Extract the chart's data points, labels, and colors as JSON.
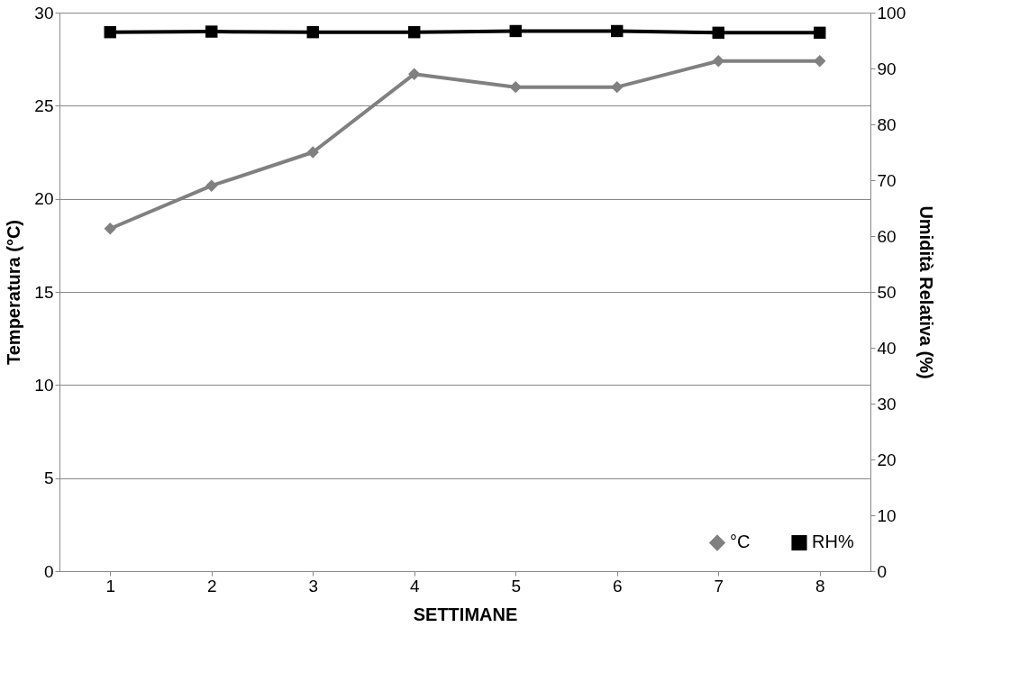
{
  "chart_data": {
    "type": "line",
    "xlabel": "SETTIMANE",
    "ylabel": "Temperatura (°C)",
    "y2label": "Umidità Relativa (%)",
    "categories": [
      "1",
      "2",
      "3",
      "4",
      "5",
      "6",
      "7",
      "8"
    ],
    "series": [
      {
        "name": "°C",
        "color": "#808080",
        "marker": "diamond",
        "values": [
          18.4,
          20.7,
          22.5,
          26.7,
          26.0,
          26.0,
          27.4,
          27.4
        ]
      },
      {
        "name": "RH%",
        "color": "#000000",
        "marker": "square",
        "axis": "y2",
        "values": [
          96.5,
          96.6,
          96.5,
          96.5,
          96.7,
          96.7,
          96.4,
          96.4
        ]
      }
    ],
    "ylim": [
      0,
      30
    ],
    "yticks": [
      0,
      5,
      10,
      15,
      20,
      25,
      30
    ],
    "y2lim": [
      0,
      100
    ],
    "y2ticks": [
      0,
      10,
      20,
      30,
      40,
      50,
      60,
      70,
      80,
      90,
      100
    ],
    "grid": "y",
    "legend": "bottom right",
    "line_style": "solid"
  }
}
